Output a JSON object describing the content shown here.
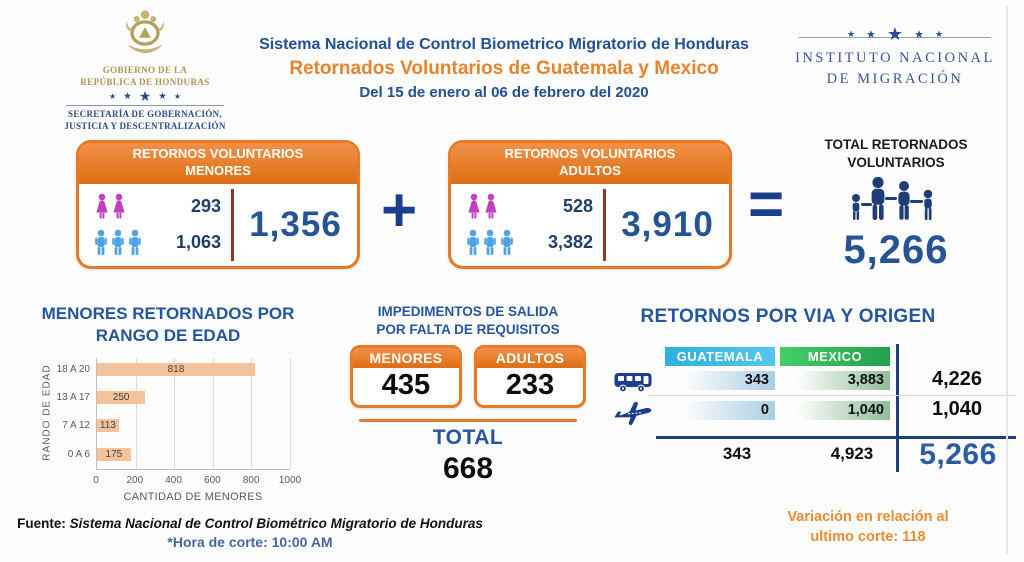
{
  "header": {
    "gov_logo": {
      "line1": "GOBIERNO DE LA",
      "line2": "REPÚBLICA DE HONDURAS",
      "line3": "SECRETARÍA DE GOBERNACIÓN,",
      "line4": "JUSTICIA Y DESCENTRALIZACIÓN"
    },
    "title": {
      "line1": "Sistema Nacional de Control Biometrico Migratorio de Honduras",
      "line2": "Retornados Voluntarios de Guatemala y Mexico",
      "line3": "Del 15 de enero al 06 de febrero del 2020"
    },
    "inm_logo": {
      "line1": "INSTITUTO NACIONAL",
      "line2": "DE MIGRACIÓN"
    }
  },
  "icons": {
    "star": "★"
  },
  "summary": {
    "plus_sign": "+",
    "equals_sign": "=",
    "menores": {
      "header_line1": "RETORNOS VOLUNTARIOS",
      "header_line2": "MENORES",
      "female": "293",
      "male": "1,063",
      "total": "1,356"
    },
    "adultos": {
      "header_line1": "RETORNOS VOLUNTARIOS",
      "header_line2": "ADULTOS",
      "female": "528",
      "male": "3,382",
      "total": "3,910"
    },
    "total": {
      "label_line1": "TOTAL RETORNADOS",
      "label_line2": "VOLUNTARIOS",
      "value": "5,266"
    }
  },
  "chart_data": [
    {
      "type": "bar",
      "orientation": "horizontal",
      "title_line1": "MENORES RETORNADOS POR",
      "title_line2": "RANGO DE EDAD",
      "title": "MENORES RETORNADOS POR RANGO DE EDAD",
      "categories": [
        "18 A 20",
        "13 A 17",
        "7 A 12",
        "0 A 6"
      ],
      "values": [
        818,
        250,
        113,
        175
      ],
      "xlabel": "CANTIDAD DE MENORES",
      "ylabel": "RANDO DE EDAD",
      "xlim": [
        0,
        1000
      ],
      "xticks": [
        0,
        200,
        400,
        600,
        800,
        1000
      ],
      "grid": true,
      "bar_color": "#F5C39B",
      "legend": "none"
    },
    {
      "type": "table",
      "title": "RETORNOS POR VIA Y ORIGEN",
      "columns": [
        "GUATEMALA",
        "MEXICO"
      ],
      "row_headers": [
        "bus",
        "avion"
      ],
      "rows": [
        [
          "343",
          "3,883",
          "4,226"
        ],
        [
          "0",
          "1,040",
          "1,040"
        ]
      ],
      "totals": [
        "343",
        "4,923",
        "5,266"
      ]
    }
  ],
  "impedimentos": {
    "title_line1": "IMPEDIMENTOS DE SALIDA",
    "title_line2": "POR FALTA DE REQUISITOS",
    "menores_label": "MENORES",
    "menores_value": "435",
    "adultos_label": "ADULTOS",
    "adultos_value": "233",
    "total_label": "TOTAL",
    "total_value": "668"
  },
  "footer": {
    "fuente_label": "Fuente:",
    "fuente_text": "Sistema Nacional de Control Biométrico Migratorio de Honduras",
    "hora": "*Hora de corte: 10:00 AM",
    "variacion_line1": "Variación en relación al",
    "variacion_line2": "ultimo corte: 118"
  },
  "colors": {
    "orange": "#E87A25",
    "title_blue": "#215095",
    "section_blue": "#2456A0",
    "navy": "#1B3F8F",
    "big_number_blue": "#255493",
    "female_icon": "#C23FC2",
    "male_icon": "#4FA3E3",
    "family_icon": "#1F3E78",
    "guatemala_header": "#2FB0DE",
    "mexico_header": "#23A04E",
    "bar_fill": "#F5C39B",
    "variacion_orange": "#EE8A33"
  }
}
